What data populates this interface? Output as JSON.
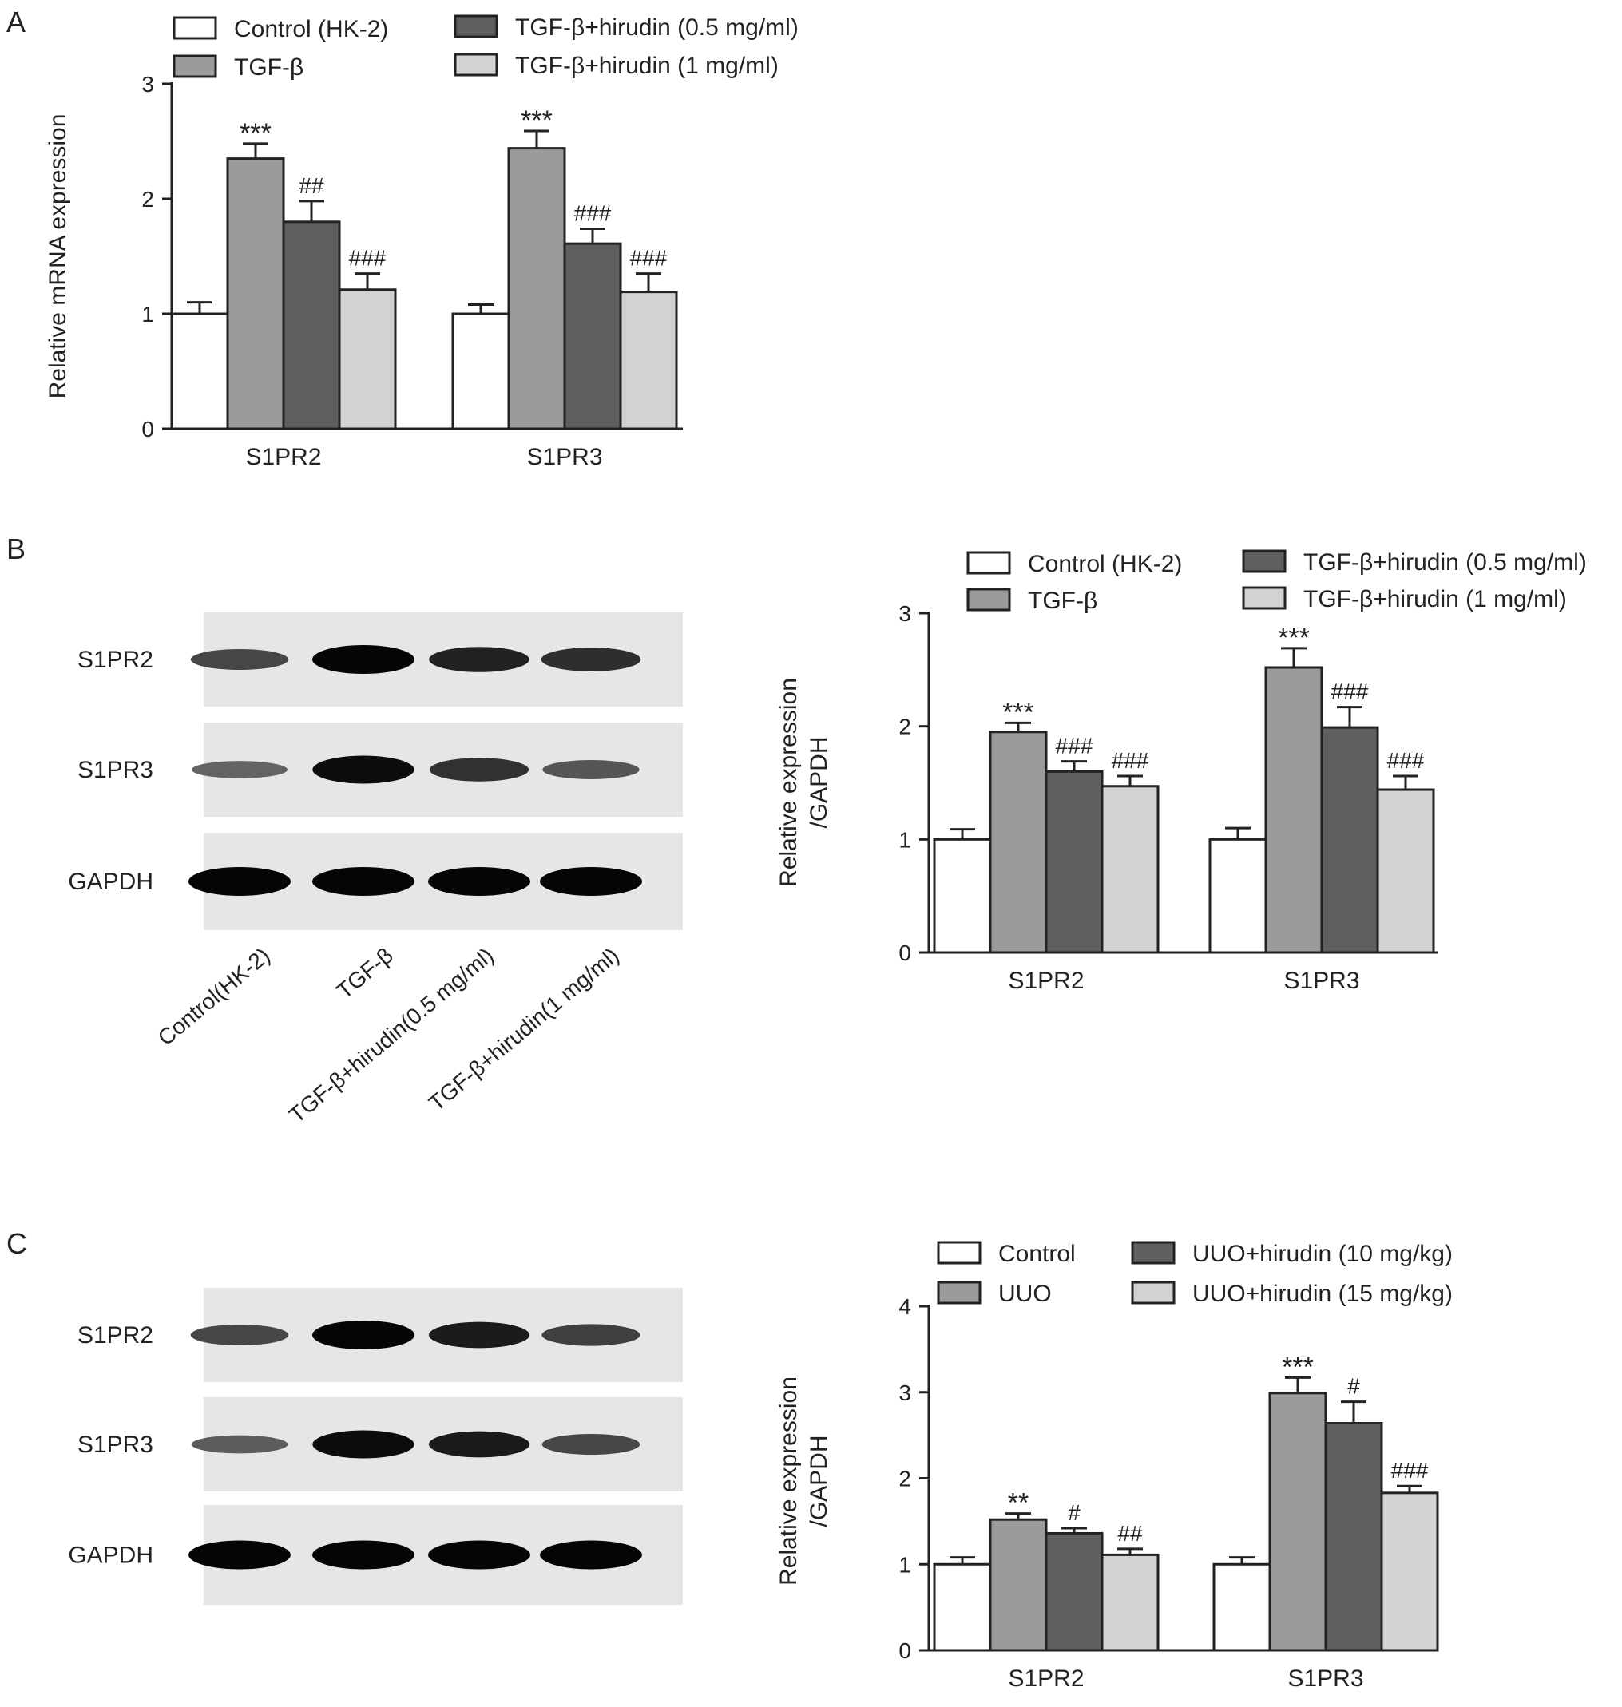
{
  "panels": [
    {
      "id": "A",
      "letter": "A",
      "chart_data": {
        "type": "bar",
        "ylabel": "Relative mRNA expression",
        "ylim": [
          0,
          3
        ],
        "yticks": [
          "0",
          "1",
          "2",
          "3"
        ],
        "categories": [
          "S1PR2",
          "S1PR3"
        ],
        "series": [
          {
            "name": "Control (HK-2)",
            "values": [
              1.0,
              1.0
            ],
            "errors": [
              0.1,
              0.08
            ],
            "annotations": [
              "",
              ""
            ],
            "color": "#ffffff"
          },
          {
            "name": "TGF-β",
            "values": [
              2.35,
              2.44
            ],
            "errors": [
              0.13,
              0.15
            ],
            "annotations": [
              "***",
              "***"
            ],
            "color": "#9b9b9b"
          },
          {
            "name": "TGF-β+hirudin (0.5 mg/ml)",
            "values": [
              1.8,
              1.61
            ],
            "errors": [
              0.18,
              0.13
            ],
            "annotations": [
              "##",
              "###"
            ],
            "color": "#5f5f5f"
          },
          {
            "name": "TGF-β+hirudin (1 mg/ml)",
            "values": [
              1.21,
              1.19
            ],
            "errors": [
              0.14,
              0.16
            ],
            "annotations": [
              "###",
              "###"
            ],
            "color": "#d2d2d2"
          }
        ]
      }
    },
    {
      "id": "B",
      "letter": "B",
      "blot": {
        "rows": [
          "S1PR2",
          "S1PR3",
          "GAPDH"
        ],
        "lanes": [
          "Control(HK-2)",
          "TGF-β",
          "TGF-β+hirudin(0.5 mg/ml)",
          "TGF-β+hirudin(1 mg/ml)"
        ],
        "band_intensity": [
          [
            0.55,
            1.0,
            0.8,
            0.72
          ],
          [
            0.35,
            0.95,
            0.7,
            0.45
          ],
          [
            1.0,
            1.0,
            1.0,
            1.0
          ]
        ]
      },
      "chart_data": {
        "type": "bar",
        "ylabel": "Relative expression /GAPDH",
        "ylim": [
          0,
          3
        ],
        "yticks": [
          "0",
          "1",
          "2",
          "3"
        ],
        "categories": [
          "S1PR2",
          "S1PR3"
        ],
        "series": [
          {
            "name": "Control (HK-2)",
            "values": [
              1.0,
              1.0
            ],
            "errors": [
              0.09,
              0.1
            ],
            "annotations": [
              "",
              ""
            ],
            "color": "#ffffff"
          },
          {
            "name": "TGF-β",
            "values": [
              1.95,
              2.52
            ],
            "errors": [
              0.08,
              0.17
            ],
            "annotations": [
              "***",
              "***"
            ],
            "color": "#9b9b9b"
          },
          {
            "name": "TGF-β+hirudin (0.5 mg/ml)",
            "values": [
              1.6,
              1.99
            ],
            "errors": [
              0.09,
              0.18
            ],
            "annotations": [
              "###",
              "###"
            ],
            "color": "#5f5f5f"
          },
          {
            "name": "TGF-β+hirudin (1 mg/ml)",
            "values": [
              1.47,
              1.44
            ],
            "errors": [
              0.09,
              0.12
            ],
            "annotations": [
              "###",
              "###"
            ],
            "color": "#d2d2d2"
          }
        ]
      }
    },
    {
      "id": "C",
      "letter": "C",
      "blot": {
        "rows": [
          "S1PR2",
          "S1PR3",
          "GAPDH"
        ],
        "lanes": [],
        "band_intensity": [
          [
            0.55,
            1.0,
            0.85,
            0.6
          ],
          [
            0.4,
            0.95,
            0.85,
            0.55
          ],
          [
            1.0,
            1.0,
            1.0,
            1.0
          ]
        ]
      },
      "chart_data": {
        "type": "bar",
        "ylabel": "Relative expression /GAPDH",
        "ylim": [
          0,
          4
        ],
        "yticks": [
          "0",
          "1",
          "2",
          "3",
          "4"
        ],
        "categories": [
          "S1PR2",
          "S1PR3"
        ],
        "series": [
          {
            "name": "Control",
            "values": [
              1.0,
              1.0
            ],
            "errors": [
              0.08,
              0.08
            ],
            "annotations": [
              "",
              ""
            ],
            "color": "#ffffff"
          },
          {
            "name": "UUO",
            "values": [
              1.52,
              2.99
            ],
            "errors": [
              0.07,
              0.18
            ],
            "annotations": [
              "**",
              "***"
            ],
            "color": "#9b9b9b"
          },
          {
            "name": "UUO+hirudin (10 mg/kg)",
            "values": [
              1.36,
              2.64
            ],
            "errors": [
              0.06,
              0.25
            ],
            "annotations": [
              "#",
              "#"
            ],
            "color": "#5f5f5f"
          },
          {
            "name": "UUO+hirudin (15 mg/kg)",
            "values": [
              1.11,
              1.83
            ],
            "errors": [
              0.07,
              0.08
            ],
            "annotations": [
              "##",
              "###"
            ],
            "color": "#d2d2d2"
          }
        ]
      }
    }
  ]
}
